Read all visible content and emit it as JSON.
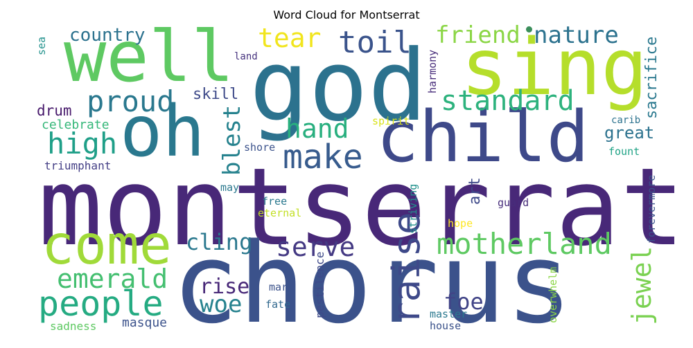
{
  "title": "Word Cloud for Montserrat",
  "words": {
    "montserrat": "montserrat",
    "chorus": "chorus",
    "god": "god",
    "sing": "sing",
    "well": "well",
    "child": "child",
    "oh": "oh",
    "come": "come",
    "people": "people",
    "motherland": "motherland",
    "raise": "raise",
    "make": "make",
    "proud": "proud",
    "high": "high",
    "standard": "standard",
    "toil": "toil",
    "tear": "tear",
    "nature": "nature",
    "friend": "friend",
    "emerald": "emerald",
    "serve": "serve",
    "jewel": "jewel",
    "hand": "hand",
    "blest": "blest",
    "cling": "cling",
    "woe": "woe",
    "rise": "rise",
    "foe": "foe",
    "country": "country",
    "sacrifice": "sacrifice",
    "great": "great",
    "skill": "skill",
    "drum": "drum",
    "celebrate": "celebrate",
    "triumphant": "triumphant",
    "sea": "sea",
    "land": "land",
    "harmony": "harmony",
    "spirit": "spirit",
    "carib": "carib",
    "shore": "shore",
    "fount": "fount",
    "forevermore": "forevermore",
    "art": "art",
    "striving": "striving",
    "guard": "guard",
    "may": "may",
    "free": "free",
    "eternal": "eternal",
    "hope": "hope",
    "pestilence": "pestilence",
    "overwhelm": "overwhelm",
    "mar": "mar",
    "fate": "fate",
    "master": "master",
    "house": "house",
    "masque": "masque",
    "sadness": "sadness"
  }
}
